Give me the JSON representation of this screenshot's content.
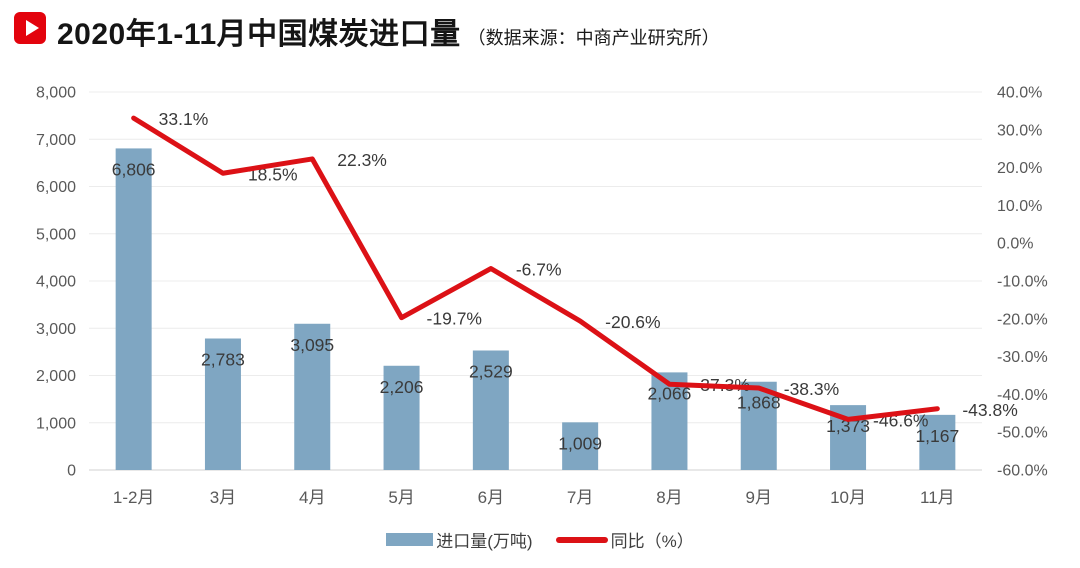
{
  "header": {
    "title": "2020年1-11月中国煤炭进口量",
    "source_note": "（数据来源：中商产业研究所）",
    "icon": "play-badge"
  },
  "colors": {
    "accent_red": "#e3030d",
    "bar_blue": "#7fa6c2",
    "line_red": "#dc1116",
    "axis_text": "#595959",
    "data_label_text": "#3a3a3a",
    "gridline": "#ececec",
    "axis_line": "#d0d0d0"
  },
  "chart_data": {
    "type": "bar",
    "subtype": "bar+line combo, dual axis",
    "categories": [
      "1-2月",
      "3月",
      "4月",
      "5月",
      "6月",
      "7月",
      "8月",
      "9月",
      "10月",
      "11月"
    ],
    "series": [
      {
        "name": "进口量(万吨)",
        "type": "bar",
        "axis": "left",
        "color": "#7fa6c2",
        "values": [
          6806,
          2783,
          3095,
          2206,
          2529,
          1009,
          2066,
          1868,
          1373,
          1167
        ],
        "value_labels": [
          "6,806",
          "2,783",
          "3,095",
          "2,206",
          "2,529",
          "1,009",
          "2,066",
          "1,868",
          "1,373",
          "1,167"
        ]
      },
      {
        "name": "同比（%）",
        "type": "line",
        "axis": "right",
        "color": "#dc1116",
        "values": [
          33.1,
          18.5,
          22.3,
          -19.7,
          -6.7,
          -20.6,
          -37.3,
          -38.3,
          -46.6,
          -43.8
        ],
        "value_labels": [
          "33.1%",
          "18.5%",
          "22.3%",
          "-19.7%",
          "-6.7%",
          "-20.6%",
          "-37.3%",
          "-38.3%",
          "-46.6%",
          "-43.8%"
        ]
      }
    ],
    "left_axis": {
      "min": 0,
      "max": 8000,
      "step": 1000,
      "tick_labels": [
        "0",
        "1,000",
        "2,000",
        "3,000",
        "4,000",
        "5,000",
        "6,000",
        "7,000",
        "8,000"
      ]
    },
    "right_axis": {
      "min": -60,
      "max": 40,
      "step": 10,
      "tick_labels": [
        "-60.0%",
        "-50.0%",
        "-40.0%",
        "-30.0%",
        "-20.0%",
        "-10.0%",
        "0.0%",
        "10.0%",
        "20.0%",
        "30.0%",
        "40.0%"
      ]
    },
    "grid": true,
    "legend": {
      "position": "bottom-center",
      "items": [
        {
          "label": "进口量(万吨)",
          "swatch": "bar"
        },
        {
          "label": "同比（%）",
          "swatch": "line"
        }
      ]
    }
  }
}
